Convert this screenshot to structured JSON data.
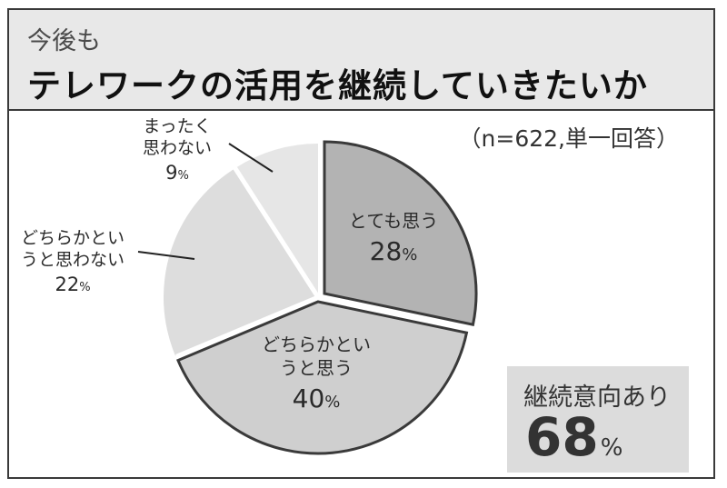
{
  "header": {
    "kicker": "今後も",
    "title": "テレワークの活用を継続していきたいか"
  },
  "sample_note": "（n=622,単一回答）",
  "summary": {
    "label": "継続意向あり",
    "value": "68",
    "unit": "%"
  },
  "chart_data": {
    "type": "pie",
    "unit": "%",
    "slices": [
      {
        "label_lines": [
          "とても思う"
        ],
        "value": 28,
        "color": "#b3b3b3"
      },
      {
        "label_lines": [
          "どちらかとい",
          "うと思う"
        ],
        "value": 40,
        "color": "#cfcfcf"
      },
      {
        "label_lines": [
          "どちらかとい",
          "うと思わない"
        ],
        "value": 22,
        "color": "#dddddd"
      },
      {
        "label_lines": [
          "まったく",
          "思わない"
        ],
        "value": 9,
        "color": "#e6e6e6"
      }
    ]
  }
}
